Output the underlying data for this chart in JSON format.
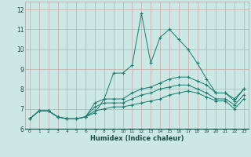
{
  "xlabel": "Humidex (Indice chaleur)",
  "xlim": [
    -0.5,
    23.5
  ],
  "ylim": [
    6,
    12.4
  ],
  "yticks": [
    6,
    7,
    8,
    9,
    10,
    11,
    12
  ],
  "xticks": [
    0,
    1,
    2,
    3,
    4,
    5,
    6,
    7,
    8,
    9,
    10,
    11,
    12,
    13,
    14,
    15,
    16,
    17,
    18,
    19,
    20,
    21,
    22,
    23
  ],
  "background_color": "#cce8e4",
  "grid_color": "#c8a8a8",
  "line_color": "#1a7a6e",
  "lines": [
    {
      "x": [
        0,
        1,
        2,
        3,
        4,
        5,
        6,
        7,
        8,
        9,
        10,
        11,
        12,
        13,
        14,
        15,
        16,
        17,
        18,
        19,
        20,
        21,
        22,
        23
      ],
      "y": [
        6.5,
        6.9,
        6.9,
        6.6,
        6.5,
        6.5,
        6.6,
        6.8,
        7.5,
        8.8,
        8.8,
        9.2,
        11.8,
        9.3,
        10.6,
        11.0,
        10.5,
        10.0,
        9.3,
        8.5,
        7.8,
        7.8,
        7.4,
        8.0
      ]
    },
    {
      "x": [
        0,
        1,
        2,
        3,
        4,
        5,
        6,
        7,
        8,
        9,
        10,
        11,
        12,
        13,
        14,
        15,
        16,
        17,
        18,
        19,
        20,
        21,
        22,
        23
      ],
      "y": [
        6.5,
        6.9,
        6.9,
        6.6,
        6.5,
        6.5,
        6.6,
        7.3,
        7.5,
        7.5,
        7.5,
        7.8,
        8.0,
        8.1,
        8.3,
        8.5,
        8.6,
        8.6,
        8.4,
        8.2,
        7.8,
        7.8,
        7.5,
        8.0
      ]
    },
    {
      "x": [
        0,
        1,
        2,
        3,
        4,
        5,
        6,
        7,
        8,
        9,
        10,
        11,
        12,
        13,
        14,
        15,
        16,
        17,
        18,
        19,
        20,
        21,
        22,
        23
      ],
      "y": [
        6.5,
        6.9,
        6.9,
        6.6,
        6.5,
        6.5,
        6.6,
        7.1,
        7.3,
        7.3,
        7.3,
        7.5,
        7.7,
        7.8,
        8.0,
        8.1,
        8.2,
        8.2,
        8.0,
        7.8,
        7.5,
        7.5,
        7.2,
        7.7
      ]
    },
    {
      "x": [
        0,
        1,
        2,
        3,
        4,
        5,
        6,
        7,
        8,
        9,
        10,
        11,
        12,
        13,
        14,
        15,
        16,
        17,
        18,
        19,
        20,
        21,
        22,
        23
      ],
      "y": [
        6.5,
        6.9,
        6.9,
        6.6,
        6.5,
        6.5,
        6.6,
        6.9,
        7.0,
        7.1,
        7.1,
        7.2,
        7.3,
        7.4,
        7.5,
        7.7,
        7.8,
        7.9,
        7.8,
        7.6,
        7.4,
        7.4,
        7.0,
        7.5
      ]
    }
  ]
}
